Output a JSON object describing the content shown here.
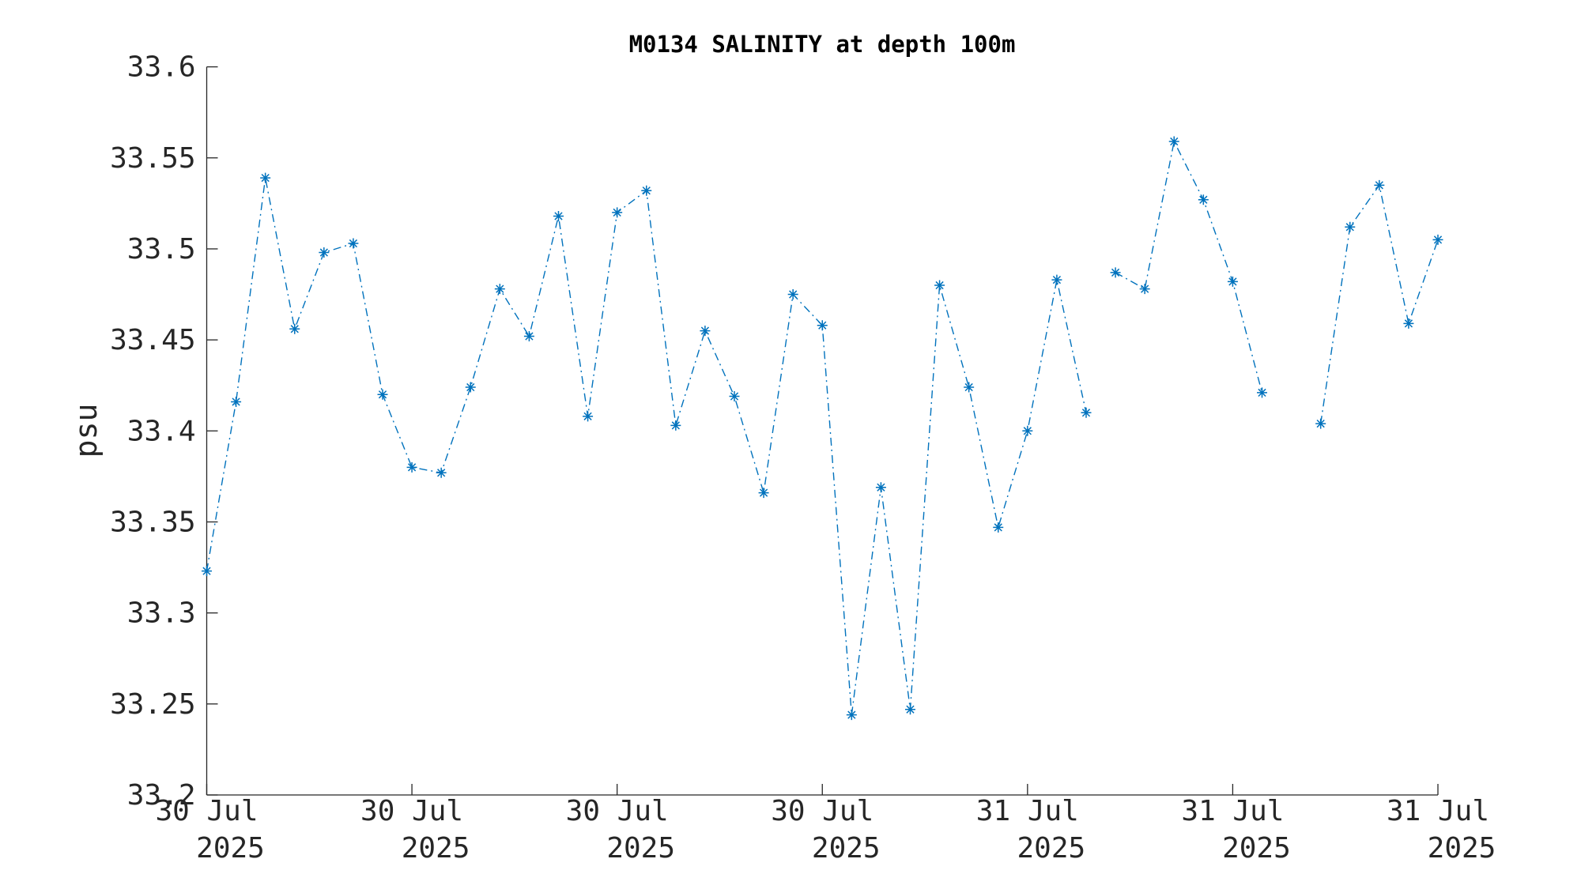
{
  "chart_data": {
    "type": "line",
    "title": "M0134 SALINITY at depth 100m",
    "ylabel": "psu",
    "x": [
      0,
      1,
      2,
      3,
      4,
      5,
      6,
      7,
      8,
      9,
      10,
      11,
      12,
      13,
      14,
      15,
      16,
      17,
      18,
      19,
      20,
      21,
      22,
      23,
      24,
      25,
      26,
      27,
      28,
      29,
      30,
      30.5,
      31,
      32,
      33,
      34,
      35,
      36,
      37,
      38,
      39,
      40,
      41,
      42
    ],
    "series": [
      {
        "name": "SALINITY",
        "color": "#0072bd",
        "values": [
          33.323,
          33.416,
          33.539,
          33.456,
          33.498,
          33.503,
          33.42,
          33.38,
          33.377,
          33.424,
          33.478,
          33.452,
          33.518,
          33.408,
          33.52,
          33.532,
          33.403,
          33.455,
          33.419,
          33.366,
          33.475,
          33.458,
          33.244,
          33.369,
          33.247,
          33.48,
          33.424,
          33.347,
          33.4,
          33.483,
          33.41,
          null,
          33.487,
          33.478,
          33.559,
          33.527,
          33.482,
          33.421,
          null,
          33.404,
          33.512,
          33.535,
          33.459,
          33.505
        ]
      }
    ],
    "xlim": [
      0,
      42
    ],
    "xticks": [
      {
        "value": 0,
        "label": [
          "30 Jul",
          "2025"
        ]
      },
      {
        "value": 7,
        "label": [
          "30 Jul",
          "2025"
        ]
      },
      {
        "value": 14,
        "label": [
          "30 Jul",
          "2025"
        ]
      },
      {
        "value": 21,
        "label": [
          "30 Jul",
          "2025"
        ]
      },
      {
        "value": 28,
        "label": [
          "31 Jul",
          "2025"
        ]
      },
      {
        "value": 35,
        "label": [
          "31 Jul",
          "2025"
        ]
      },
      {
        "value": 42,
        "label": [
          "31 Jul",
          "2025"
        ]
      }
    ],
    "ylim": [
      33.2,
      33.6
    ],
    "yticks": [
      33.2,
      33.25,
      33.3,
      33.35,
      33.4,
      33.45,
      33.5,
      33.55,
      33.6
    ],
    "grid": false
  }
}
